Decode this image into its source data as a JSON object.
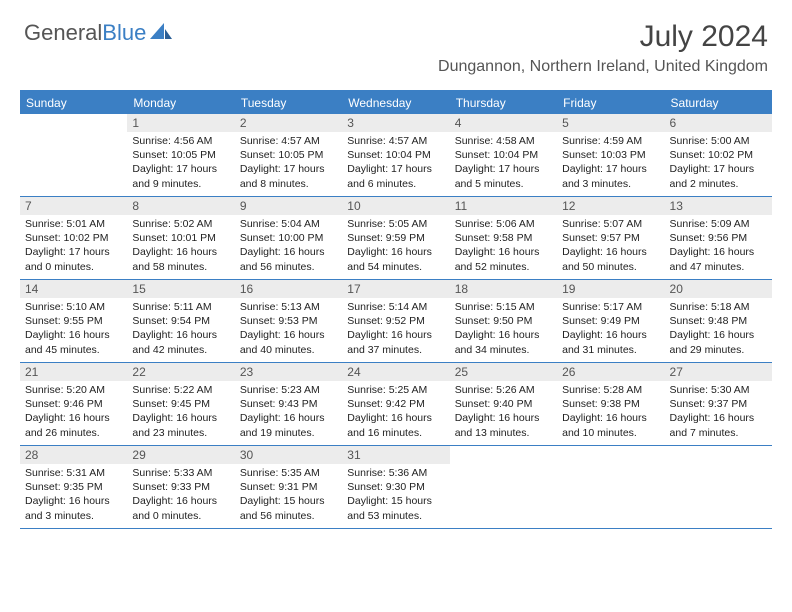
{
  "logo": {
    "text1": "General",
    "text2": "Blue"
  },
  "colors": {
    "accent": "#3b7fc4",
    "header_bg": "#3b7fc4",
    "daynum_bg": "#ececec",
    "text": "#222222",
    "muted": "#555555",
    "white": "#ffffff"
  },
  "title": "July 2024",
  "location": "Dungannon, Northern Ireland, United Kingdom",
  "weekdays": [
    "Sunday",
    "Monday",
    "Tuesday",
    "Wednesday",
    "Thursday",
    "Friday",
    "Saturday"
  ],
  "weeks": [
    [
      {
        "num": "",
        "lines": []
      },
      {
        "num": "1",
        "lines": [
          "Sunrise: 4:56 AM",
          "Sunset: 10:05 PM",
          "Daylight: 17 hours and 9 minutes."
        ]
      },
      {
        "num": "2",
        "lines": [
          "Sunrise: 4:57 AM",
          "Sunset: 10:05 PM",
          "Daylight: 17 hours and 8 minutes."
        ]
      },
      {
        "num": "3",
        "lines": [
          "Sunrise: 4:57 AM",
          "Sunset: 10:04 PM",
          "Daylight: 17 hours and 6 minutes."
        ]
      },
      {
        "num": "4",
        "lines": [
          "Sunrise: 4:58 AM",
          "Sunset: 10:04 PM",
          "Daylight: 17 hours and 5 minutes."
        ]
      },
      {
        "num": "5",
        "lines": [
          "Sunrise: 4:59 AM",
          "Sunset: 10:03 PM",
          "Daylight: 17 hours and 3 minutes."
        ]
      },
      {
        "num": "6",
        "lines": [
          "Sunrise: 5:00 AM",
          "Sunset: 10:02 PM",
          "Daylight: 17 hours and 2 minutes."
        ]
      }
    ],
    [
      {
        "num": "7",
        "lines": [
          "Sunrise: 5:01 AM",
          "Sunset: 10:02 PM",
          "Daylight: 17 hours and 0 minutes."
        ]
      },
      {
        "num": "8",
        "lines": [
          "Sunrise: 5:02 AM",
          "Sunset: 10:01 PM",
          "Daylight: 16 hours and 58 minutes."
        ]
      },
      {
        "num": "9",
        "lines": [
          "Sunrise: 5:04 AM",
          "Sunset: 10:00 PM",
          "Daylight: 16 hours and 56 minutes."
        ]
      },
      {
        "num": "10",
        "lines": [
          "Sunrise: 5:05 AM",
          "Sunset: 9:59 PM",
          "Daylight: 16 hours and 54 minutes."
        ]
      },
      {
        "num": "11",
        "lines": [
          "Sunrise: 5:06 AM",
          "Sunset: 9:58 PM",
          "Daylight: 16 hours and 52 minutes."
        ]
      },
      {
        "num": "12",
        "lines": [
          "Sunrise: 5:07 AM",
          "Sunset: 9:57 PM",
          "Daylight: 16 hours and 50 minutes."
        ]
      },
      {
        "num": "13",
        "lines": [
          "Sunrise: 5:09 AM",
          "Sunset: 9:56 PM",
          "Daylight: 16 hours and 47 minutes."
        ]
      }
    ],
    [
      {
        "num": "14",
        "lines": [
          "Sunrise: 5:10 AM",
          "Sunset: 9:55 PM",
          "Daylight: 16 hours and 45 minutes."
        ]
      },
      {
        "num": "15",
        "lines": [
          "Sunrise: 5:11 AM",
          "Sunset: 9:54 PM",
          "Daylight: 16 hours and 42 minutes."
        ]
      },
      {
        "num": "16",
        "lines": [
          "Sunrise: 5:13 AM",
          "Sunset: 9:53 PM",
          "Daylight: 16 hours and 40 minutes."
        ]
      },
      {
        "num": "17",
        "lines": [
          "Sunrise: 5:14 AM",
          "Sunset: 9:52 PM",
          "Daylight: 16 hours and 37 minutes."
        ]
      },
      {
        "num": "18",
        "lines": [
          "Sunrise: 5:15 AM",
          "Sunset: 9:50 PM",
          "Daylight: 16 hours and 34 minutes."
        ]
      },
      {
        "num": "19",
        "lines": [
          "Sunrise: 5:17 AM",
          "Sunset: 9:49 PM",
          "Daylight: 16 hours and 31 minutes."
        ]
      },
      {
        "num": "20",
        "lines": [
          "Sunrise: 5:18 AM",
          "Sunset: 9:48 PM",
          "Daylight: 16 hours and 29 minutes."
        ]
      }
    ],
    [
      {
        "num": "21",
        "lines": [
          "Sunrise: 5:20 AM",
          "Sunset: 9:46 PM",
          "Daylight: 16 hours and 26 minutes."
        ]
      },
      {
        "num": "22",
        "lines": [
          "Sunrise: 5:22 AM",
          "Sunset: 9:45 PM",
          "Daylight: 16 hours and 23 minutes."
        ]
      },
      {
        "num": "23",
        "lines": [
          "Sunrise: 5:23 AM",
          "Sunset: 9:43 PM",
          "Daylight: 16 hours and 19 minutes."
        ]
      },
      {
        "num": "24",
        "lines": [
          "Sunrise: 5:25 AM",
          "Sunset: 9:42 PM",
          "Daylight: 16 hours and 16 minutes."
        ]
      },
      {
        "num": "25",
        "lines": [
          "Sunrise: 5:26 AM",
          "Sunset: 9:40 PM",
          "Daylight: 16 hours and 13 minutes."
        ]
      },
      {
        "num": "26",
        "lines": [
          "Sunrise: 5:28 AM",
          "Sunset: 9:38 PM",
          "Daylight: 16 hours and 10 minutes."
        ]
      },
      {
        "num": "27",
        "lines": [
          "Sunrise: 5:30 AM",
          "Sunset: 9:37 PM",
          "Daylight: 16 hours and 7 minutes."
        ]
      }
    ],
    [
      {
        "num": "28",
        "lines": [
          "Sunrise: 5:31 AM",
          "Sunset: 9:35 PM",
          "Daylight: 16 hours and 3 minutes."
        ]
      },
      {
        "num": "29",
        "lines": [
          "Sunrise: 5:33 AM",
          "Sunset: 9:33 PM",
          "Daylight: 16 hours and 0 minutes."
        ]
      },
      {
        "num": "30",
        "lines": [
          "Sunrise: 5:35 AM",
          "Sunset: 9:31 PM",
          "Daylight: 15 hours and 56 minutes."
        ]
      },
      {
        "num": "31",
        "lines": [
          "Sunrise: 5:36 AM",
          "Sunset: 9:30 PM",
          "Daylight: 15 hours and 53 minutes."
        ]
      },
      {
        "num": "",
        "lines": []
      },
      {
        "num": "",
        "lines": []
      },
      {
        "num": "",
        "lines": []
      }
    ]
  ]
}
